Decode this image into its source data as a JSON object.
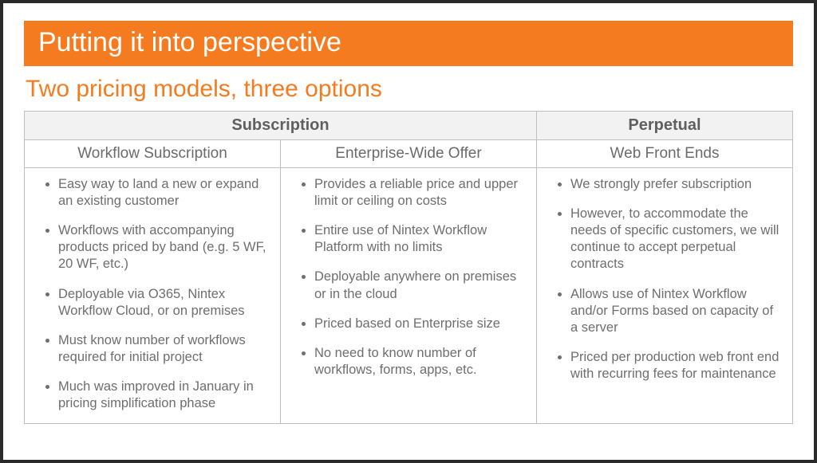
{
  "colors": {
    "accent": "#f47b20",
    "border": "#bfbfbf",
    "header_bg": "#f2f2f2",
    "header_text": "#5f5f5f",
    "body_text": "#6e6e6e",
    "frame": "#2a2a2a"
  },
  "title": "Putting it into perspective",
  "subtitle": "Two pricing models, three options",
  "groups": [
    {
      "label": "Subscription",
      "span": 2
    },
    {
      "label": "Perpetual",
      "span": 1
    }
  ],
  "columns": [
    {
      "heading": "Workflow Subscription",
      "bullets": [
        "Easy way to land a new or expand an existing customer",
        "Workflows with accompanying products priced by band (e.g. 5 WF, 20 WF, etc.)",
        "Deployable via O365, Nintex Workflow Cloud, or on premises",
        "Must know number of workflows required for initial project",
        "Much was improved in January in pricing simplification phase"
      ]
    },
    {
      "heading": "Enterprise-Wide Offer",
      "bullets": [
        "Provides a reliable price and upper limit or ceiling on costs",
        "Entire use of Nintex Workflow Platform with no limits",
        "Deployable anywhere on premises or in the cloud",
        "Priced based on Enterprise size",
        "No need to know number of workflows, forms, apps, etc."
      ]
    },
    {
      "heading": "Web Front Ends",
      "bullets": [
        "We strongly prefer subscription",
        "However, to accommodate the needs of specific customers, we will continue to accept perpetual contracts",
        "Allows use of Nintex Workflow and/or Forms based on capacity of a server",
        "Priced per production web front end with recurring fees for maintenance"
      ]
    }
  ]
}
